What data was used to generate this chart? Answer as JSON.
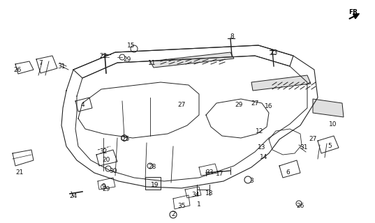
{
  "bg_color": "#ffffff",
  "line_color": "#222222",
  "text_color": "#111111",
  "font_size": 6.5,
  "labels": [
    [
      285,
      293,
      "1"
    ],
    [
      248,
      308,
      "2"
    ],
    [
      360,
      260,
      "3"
    ],
    [
      118,
      150,
      "4"
    ],
    [
      472,
      210,
      "5"
    ],
    [
      412,
      248,
      "6"
    ],
    [
      58,
      90,
      "7"
    ],
    [
      332,
      52,
      "8"
    ],
    [
      148,
      268,
      "9"
    ],
    [
      477,
      178,
      "10"
    ],
    [
      218,
      90,
      "11"
    ],
    [
      372,
      188,
      "12"
    ],
    [
      375,
      212,
      "13"
    ],
    [
      378,
      225,
      "14"
    ],
    [
      188,
      65,
      "15"
    ],
    [
      385,
      152,
      "16"
    ],
    [
      315,
      250,
      "17"
    ],
    [
      300,
      278,
      "18"
    ],
    [
      222,
      265,
      "19"
    ],
    [
      152,
      230,
      "20"
    ],
    [
      28,
      248,
      "21"
    ],
    [
      148,
      80,
      "22"
    ],
    [
      392,
      75,
      "23"
    ],
    [
      105,
      282,
      "24"
    ],
    [
      180,
      200,
      "25"
    ],
    [
      25,
      100,
      "26"
    ],
    [
      260,
      150,
      "27"
    ],
    [
      365,
      148,
      "27"
    ],
    [
      448,
      200,
      "27"
    ],
    [
      218,
      240,
      "28"
    ],
    [
      182,
      85,
      "29"
    ],
    [
      342,
      150,
      "29"
    ],
    [
      152,
      272,
      "29"
    ],
    [
      162,
      245,
      "30"
    ],
    [
      88,
      95,
      "31"
    ],
    [
      435,
      212,
      "31"
    ],
    [
      148,
      218,
      "32"
    ],
    [
      300,
      248,
      "33"
    ],
    [
      280,
      280,
      "34"
    ],
    [
      260,
      295,
      "35"
    ],
    [
      430,
      295,
      "26"
    ]
  ]
}
